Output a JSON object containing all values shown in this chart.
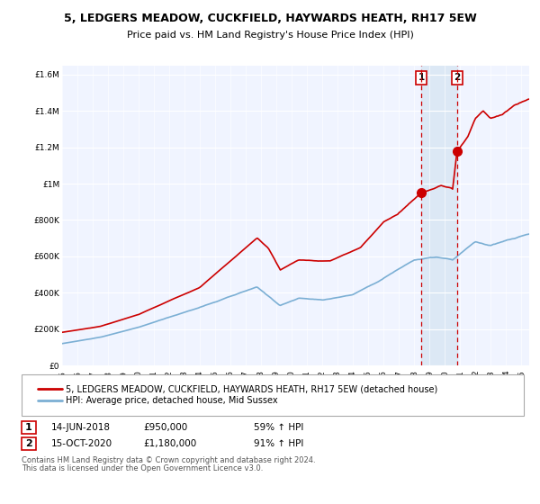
{
  "title": "5, LEDGERS MEADOW, CUCKFIELD, HAYWARDS HEATH, RH17 5EW",
  "subtitle": "Price paid vs. HM Land Registry's House Price Index (HPI)",
  "legend_line1": "5, LEDGERS MEADOW, CUCKFIELD, HAYWARDS HEATH, RH17 5EW (detached house)",
  "legend_line2": "HPI: Average price, detached house, Mid Sussex",
  "sale1_date": "14-JUN-2018",
  "sale1_price": "£950,000",
  "sale1_hpi": "59% ↑ HPI",
  "sale2_date": "15-OCT-2020",
  "sale2_price": "£1,180,000",
  "sale2_hpi": "91% ↑ HPI",
  "footer": "Contains HM Land Registry data © Crown copyright and database right 2024.\nThis data is licensed under the Open Government Licence v3.0.",
  "red_color": "#cc0000",
  "blue_color": "#7bafd4",
  "shade_color": "#dce8f5",
  "dashed_color": "#cc0000",
  "background_plot": "#f0f4ff",
  "grid_color": "#ffffff",
  "ylim": [
    0,
    1650000
  ],
  "xlim_start": 1995.0,
  "xlim_end": 2025.5,
  "sale1_x": 2018.46,
  "sale1_y": 950000,
  "sale2_x": 2020.79,
  "sale2_y": 1180000
}
